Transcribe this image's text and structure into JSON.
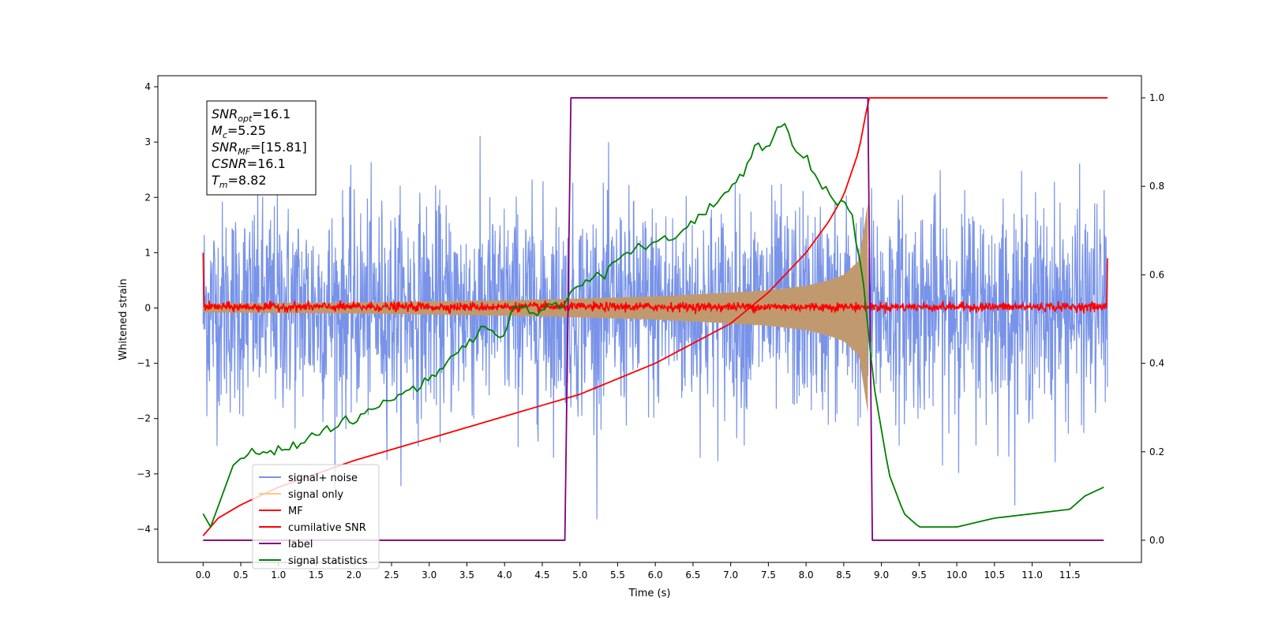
{
  "chart_data": {
    "type": "line",
    "xlabel": "Time (s)",
    "ylabel": "Whitened strain",
    "xlim": [
      -0.6,
      12.45
    ],
    "ylim": [
      -4.6,
      4.2
    ],
    "y2lim": [
      -0.05,
      1.05
    ],
    "x_ticks": [
      "0.0",
      "0.5",
      "1.0",
      "1.5",
      "2.0",
      "2.5",
      "3.0",
      "3.5",
      "4.0",
      "4.5",
      "5.0",
      "5.5",
      "6.0",
      "6.5",
      "7.0",
      "7.5",
      "8.0",
      "8.5",
      "9.0",
      "9.5",
      "10.0",
      "10.5",
      "11.0",
      "11.5"
    ],
    "y_ticks": [
      "4",
      "3",
      "2",
      "1",
      "0",
      "−1",
      "−2",
      "−3",
      "−4"
    ],
    "y2_ticks": [
      "1.0",
      "0.8",
      "0.6",
      "0.4",
      "0.2",
      "0.0"
    ],
    "legend_position": "lower-left",
    "annotation": [
      {
        "base": "SNR",
        "sub": "opt",
        "value": "=16.1"
      },
      {
        "base": "M",
        "sub": "c",
        "value": "=5.25"
      },
      {
        "base": "SNR",
        "sub": "MF",
        "value": "=[15.81]"
      },
      {
        "base": "CSNR",
        "sub": "",
        "value": "=16.1"
      },
      {
        "base": "T",
        "sub": "m",
        "value": "=8.82"
      }
    ],
    "series": [
      {
        "name": "signal+ noise",
        "color": "#7893e8",
        "axis": "left",
        "style": "noise band",
        "x_range": [
          0.0,
          12.0
        ],
        "typical_range": [
          -1.6,
          1.6
        ],
        "extremes": [
          -4.15,
          3.82
        ]
      },
      {
        "name": "signal only",
        "color": "#ffc87a",
        "axis": "left",
        "style": "chirp envelope",
        "x": [
          0.0,
          1.0,
          2.0,
          3.0,
          4.0,
          5.0,
          6.0,
          7.0,
          7.5,
          8.0,
          8.3,
          8.5,
          8.7,
          8.82
        ],
        "amplitude": [
          0.08,
          0.09,
          0.1,
          0.12,
          0.14,
          0.17,
          0.21,
          0.28,
          0.32,
          0.4,
          0.5,
          0.6,
          0.85,
          1.9
        ]
      },
      {
        "name": "MF",
        "color": "#ff0000",
        "axis": "left",
        "style": "noise near zero",
        "x_range": [
          0.0,
          12.0
        ],
        "typical_range": [
          -0.08,
          0.12
        ],
        "endpoints": [
          1.0,
          0.9
        ]
      },
      {
        "name": "cumilative SNR",
        "color": "#ff0000",
        "axis": "right",
        "x": [
          0.0,
          0.2,
          0.5,
          1.0,
          2.0,
          3.0,
          4.0,
          5.0,
          6.0,
          7.0,
          7.5,
          8.0,
          8.3,
          8.5,
          8.7,
          8.8,
          8.82,
          12.0
        ],
        "y": [
          0.01,
          0.05,
          0.08,
          0.12,
          0.18,
          0.23,
          0.28,
          0.33,
          0.4,
          0.49,
          0.56,
          0.65,
          0.72,
          0.78,
          0.88,
          0.97,
          1.0,
          1.0
        ]
      },
      {
        "name": "label",
        "color": "#800080",
        "axis": "right",
        "x": [
          0.0,
          4.8,
          4.88,
          8.82,
          8.88,
          11.95
        ],
        "y": [
          0.0,
          0.0,
          1.0,
          1.0,
          0.0,
          0.0
        ]
      },
      {
        "name": "signal statistics",
        "color": "#008000",
        "axis": "right",
        "x": [
          0.0,
          0.1,
          0.25,
          0.4,
          0.6,
          0.85,
          1.1,
          1.3,
          1.6,
          2.0,
          2.3,
          2.6,
          3.0,
          3.2,
          3.5,
          3.7,
          4.0,
          4.1,
          4.3,
          4.5,
          4.8,
          5.0,
          5.3,
          5.5,
          5.8,
          6.0,
          6.3,
          6.5,
          6.8,
          7.0,
          7.2,
          7.35,
          7.5,
          7.7,
          7.85,
          8.0,
          8.2,
          8.4,
          8.6,
          8.75,
          8.9,
          9.1,
          9.3,
          9.5,
          9.7,
          10.0,
          10.5,
          11.0,
          11.5,
          11.7,
          11.95
        ],
        "y": [
          0.06,
          0.03,
          0.1,
          0.17,
          0.2,
          0.2,
          0.21,
          0.22,
          0.25,
          0.27,
          0.3,
          0.33,
          0.36,
          0.4,
          0.44,
          0.48,
          0.46,
          0.53,
          0.52,
          0.52,
          0.54,
          0.58,
          0.6,
          0.64,
          0.66,
          0.67,
          0.69,
          0.72,
          0.76,
          0.8,
          0.84,
          0.9,
          0.88,
          0.95,
          0.88,
          0.86,
          0.8,
          0.77,
          0.74,
          0.6,
          0.35,
          0.15,
          0.06,
          0.03,
          0.03,
          0.03,
          0.05,
          0.06,
          0.07,
          0.1,
          0.12
        ]
      }
    ]
  }
}
